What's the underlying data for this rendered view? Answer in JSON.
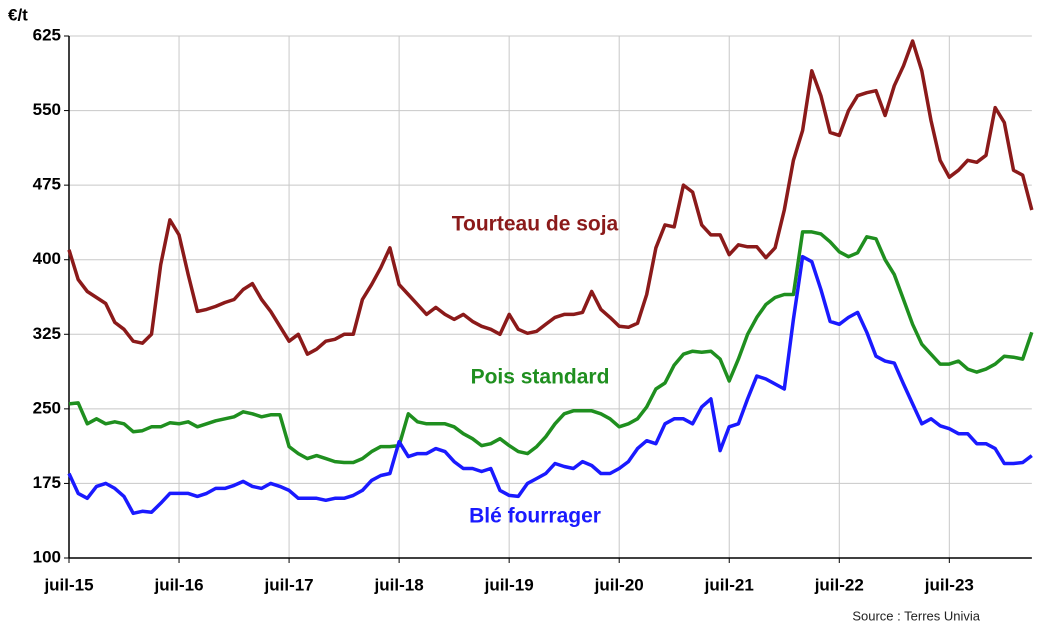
{
  "chart_data": {
    "type": "line",
    "y_label": "€/t",
    "source": "Source : Terres Univia",
    "categories": [
      "juil-15",
      null,
      null,
      null,
      null,
      null,
      null,
      null,
      null,
      null,
      null,
      null,
      "juil-16",
      null,
      null,
      null,
      null,
      null,
      null,
      null,
      null,
      null,
      null,
      null,
      "juil-17",
      null,
      null,
      null,
      null,
      null,
      null,
      null,
      null,
      null,
      null,
      null,
      "juil-18",
      null,
      null,
      null,
      null,
      null,
      null,
      null,
      null,
      null,
      null,
      null,
      "juil-19",
      null,
      null,
      null,
      null,
      null,
      null,
      null,
      null,
      null,
      null,
      null,
      "juil-20",
      null,
      null,
      null,
      null,
      null,
      null,
      null,
      null,
      null,
      null,
      null,
      "juil-21",
      null,
      null,
      null,
      null,
      null,
      null,
      null,
      null,
      null,
      null,
      null,
      "juil-22",
      null,
      null,
      null,
      null,
      null,
      null,
      null,
      null,
      null,
      null,
      null,
      "juil-23",
      null,
      null,
      null,
      null,
      null,
      null,
      null,
      null,
      null
    ],
    "series": [
      {
        "name": "Tourteau de soja",
        "color": "#8b1a1a",
        "values": [
          410,
          380,
          368,
          362,
          356,
          337,
          330,
          318,
          316,
          325,
          395,
          440,
          425,
          385,
          348,
          350,
          353,
          357,
          360,
          370,
          376,
          360,
          348,
          333,
          318,
          325,
          305,
          310,
          318,
          320,
          325,
          325,
          360,
          375,
          392,
          412,
          375,
          365,
          355,
          345,
          352,
          345,
          340,
          345,
          338,
          333,
          330,
          325,
          345,
          330,
          326,
          328,
          335,
          342,
          345,
          345,
          347,
          368,
          350,
          342,
          333,
          332,
          336,
          365,
          412,
          435,
          433,
          475,
          468,
          435,
          425,
          425,
          405,
          415,
          413,
          413,
          402,
          412,
          450,
          500,
          530,
          590,
          565,
          528,
          525,
          550,
          565,
          568,
          570,
          545,
          575,
          595,
          620,
          590,
          540,
          500,
          483,
          490,
          500,
          498,
          505,
          553,
          538,
          490,
          485,
          450
        ]
      },
      {
        "name": "Pois standard",
        "color": "#1f8f1f",
        "values": [
          255,
          256,
          235,
          240,
          235,
          237,
          235,
          227,
          228,
          232,
          232,
          236,
          235,
          237,
          232,
          235,
          238,
          240,
          242,
          247,
          245,
          242,
          244,
          244,
          212,
          205,
          200,
          203,
          200,
          197,
          196,
          196,
          200,
          207,
          212,
          212,
          213,
          245,
          237,
          235,
          235,
          235,
          232,
          225,
          220,
          213,
          215,
          220,
          213,
          207,
          205,
          212,
          222,
          235,
          245,
          248,
          248,
          248,
          245,
          240,
          232,
          235,
          240,
          252,
          270,
          276,
          294,
          305,
          308,
          307,
          308,
          300,
          278,
          300,
          325,
          342,
          355,
          362,
          365,
          365,
          428,
          428,
          426,
          418,
          408,
          403,
          407,
          423,
          421,
          400,
          385,
          360,
          335,
          315,
          305,
          295,
          295,
          298,
          290,
          287,
          290,
          295,
          303,
          302,
          300,
          327
        ]
      },
      {
        "name": "Blé fourrager",
        "color": "#1a1aff",
        "values": [
          185,
          165,
          160,
          172,
          175,
          170,
          162,
          145,
          147,
          146,
          155,
          165,
          165,
          165,
          162,
          165,
          170,
          170,
          173,
          177,
          172,
          170,
          175,
          172,
          168,
          160,
          160,
          160,
          158,
          160,
          160,
          163,
          168,
          178,
          183,
          185,
          217,
          202,
          205,
          205,
          210,
          207,
          197,
          190,
          190,
          187,
          190,
          168,
          163,
          162,
          175,
          180,
          185,
          195,
          192,
          190,
          197,
          193,
          185,
          185,
          190,
          197,
          210,
          218,
          215,
          235,
          240,
          240,
          235,
          252,
          260,
          208,
          232,
          235,
          260,
          283,
          280,
          275,
          270,
          340,
          403,
          398,
          370,
          338,
          335,
          342,
          347,
          327,
          303,
          298,
          296,
          275,
          255,
          235,
          240,
          233,
          230,
          225,
          225,
          215,
          215,
          210,
          195,
          195,
          196,
          203
        ]
      }
    ],
    "ylim": [
      100,
      625
    ],
    "yticks": [
      100,
      175,
      250,
      325,
      400,
      475,
      550,
      625
    ],
    "grid": true
  }
}
